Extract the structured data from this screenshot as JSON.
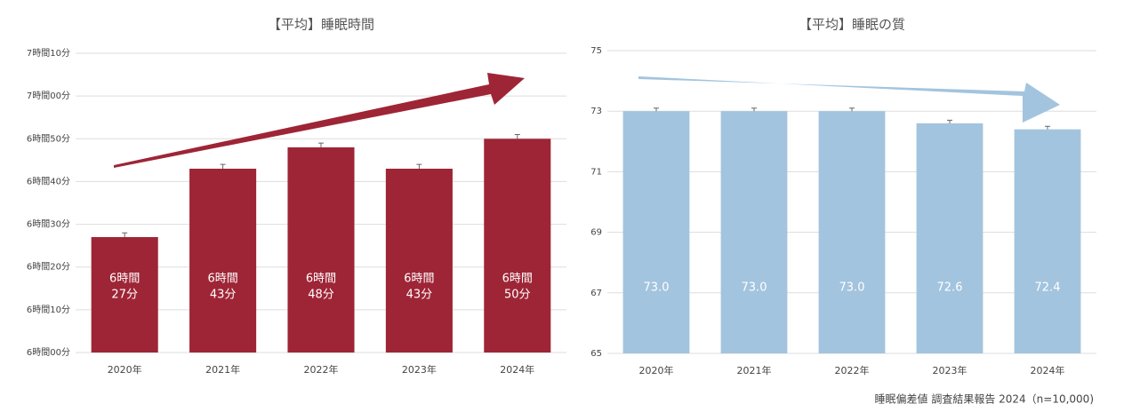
{
  "chart_data": [
    {
      "type": "bar",
      "title": "【平均】睡眠時間",
      "categories": [
        "2020年",
        "2021年",
        "2022年",
        "2023年",
        "2024年"
      ],
      "values": [
        387,
        403,
        408,
        403,
        410
      ],
      "value_labels": [
        [
          "6時間",
          "27分"
        ],
        [
          "6時間",
          "43分"
        ],
        [
          "6時間",
          "48分"
        ],
        [
          "6時間",
          "43分"
        ],
        [
          "6時間",
          "50分"
        ]
      ],
      "errors": [
        1,
        1,
        1,
        1,
        1
      ],
      "color": "#9e2536",
      "ylim": [
        360,
        430
      ],
      "yticks": [
        {
          "value": 360,
          "label": "6時間00分"
        },
        {
          "value": 370,
          "label": "6時間10分"
        },
        {
          "value": 380,
          "label": "6時間20分"
        },
        {
          "value": 390,
          "label": "6時間30分"
        },
        {
          "value": 400,
          "label": "6時間40分"
        },
        {
          "value": 410,
          "label": "6時間50分"
        },
        {
          "value": 420,
          "label": "7時間00分"
        },
        {
          "value": 430,
          "label": "7時間10分"
        }
      ],
      "grid": true
    },
    {
      "type": "bar",
      "title": "【平均】睡眠の質",
      "categories": [
        "2020年",
        "2021年",
        "2022年",
        "2023年",
        "2024年"
      ],
      "values": [
        73.0,
        73.0,
        73.0,
        72.6,
        72.4
      ],
      "value_labels": [
        "73.0",
        "73.0",
        "73.0",
        "72.6",
        "72.4"
      ],
      "errors": [
        0.1,
        0.1,
        0.1,
        0.1,
        0.1
      ],
      "color": "#a3c4de",
      "ylim": [
        65,
        75
      ],
      "yticks": [
        65,
        67,
        69,
        71,
        73,
        75
      ],
      "grid": true
    }
  ],
  "note": "睡眠偏差値 調査結果報告 2024（n=10,000)"
}
